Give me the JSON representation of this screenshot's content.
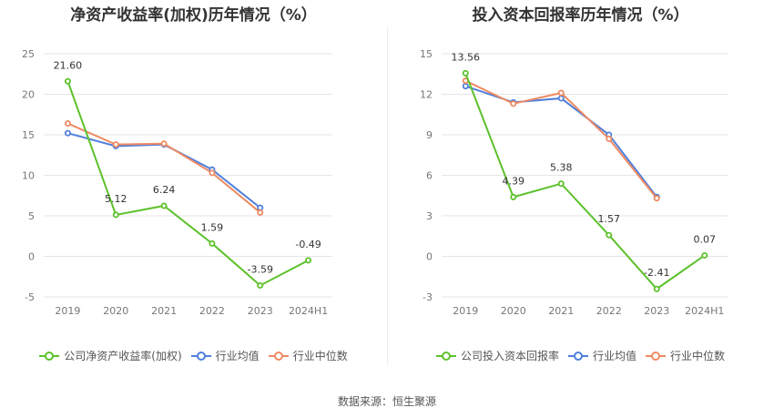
{
  "chart_data": [
    {
      "type": "line",
      "title": "净资产收益率(加权)历年情况（%）",
      "categories": [
        "2019",
        "2020",
        "2021",
        "2022",
        "2023",
        "2024H1"
      ],
      "ylim": [
        -5,
        25
      ],
      "yticks": [
        -5,
        0,
        5,
        10,
        15,
        20,
        25
      ],
      "grid": true,
      "legend_position": "bottom",
      "series": [
        {
          "name": "公司净资产收益率(加权)",
          "color": "#5cc12b",
          "values": [
            21.6,
            5.12,
            6.24,
            1.59,
            -3.59,
            -0.49
          ],
          "labels": [
            "21.60",
            "5.12",
            "6.24",
            "1.59",
            "-3.59",
            "-0.49"
          ]
        },
        {
          "name": "行业均值",
          "color": "#4f7fdc",
          "values": [
            15.2,
            13.6,
            13.8,
            10.7,
            6.0,
            null
          ]
        },
        {
          "name": "行业中位数",
          "color": "#ef8a62",
          "values": [
            16.4,
            13.8,
            13.9,
            10.3,
            5.4,
            null
          ]
        }
      ]
    },
    {
      "type": "line",
      "title": "投入资本回报率历年情况（%）",
      "categories": [
        "2019",
        "2020",
        "2021",
        "2022",
        "2023",
        "2024H1"
      ],
      "ylim": [
        -3,
        15
      ],
      "yticks": [
        -3,
        0,
        3,
        6,
        9,
        12,
        15
      ],
      "grid": true,
      "legend_position": "bottom",
      "series": [
        {
          "name": "公司投入资本回报率",
          "color": "#5cc12b",
          "values": [
            13.56,
            4.39,
            5.38,
            1.57,
            -2.41,
            0.07
          ],
          "labels": [
            "13.56",
            "4.39",
            "5.38",
            "1.57",
            "-2.41",
            "0.07"
          ]
        },
        {
          "name": "行业均值",
          "color": "#4f7fdc",
          "values": [
            12.6,
            11.4,
            11.7,
            9.0,
            4.4,
            null
          ]
        },
        {
          "name": "行业中位数",
          "color": "#ef8a62",
          "values": [
            13.0,
            11.3,
            12.1,
            8.7,
            4.3,
            null
          ]
        }
      ]
    }
  ],
  "footer": {
    "source": "数据来源：恒生聚源"
  }
}
